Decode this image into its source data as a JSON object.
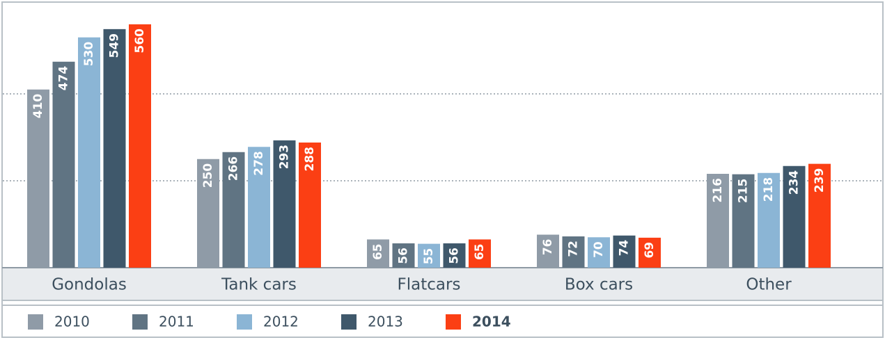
{
  "chart_data": {
    "type": "bar",
    "categories": [
      "Gondolas",
      "Tank cars",
      "Flatcars",
      "Box cars",
      "Other"
    ],
    "series": [
      {
        "name": "2010",
        "color": "#8f9ba7",
        "values": [
          410,
          250,
          65,
          76,
          216
        ]
      },
      {
        "name": "2011",
        "color": "#607483",
        "values": [
          474,
          266,
          56,
          72,
          215
        ]
      },
      {
        "name": "2012",
        "color": "#8bb5d5",
        "values": [
          530,
          278,
          55,
          70,
          218
        ]
      },
      {
        "name": "2013",
        "color": "#3f586b",
        "values": [
          549,
          293,
          56,
          74,
          234
        ]
      },
      {
        "name": "2014",
        "color": "#fb3f14",
        "values": [
          560,
          288,
          65,
          69,
          239
        ]
      }
    ],
    "ylim": [
      0,
      600
    ],
    "yticks": [
      200,
      400
    ],
    "grid": true
  }
}
